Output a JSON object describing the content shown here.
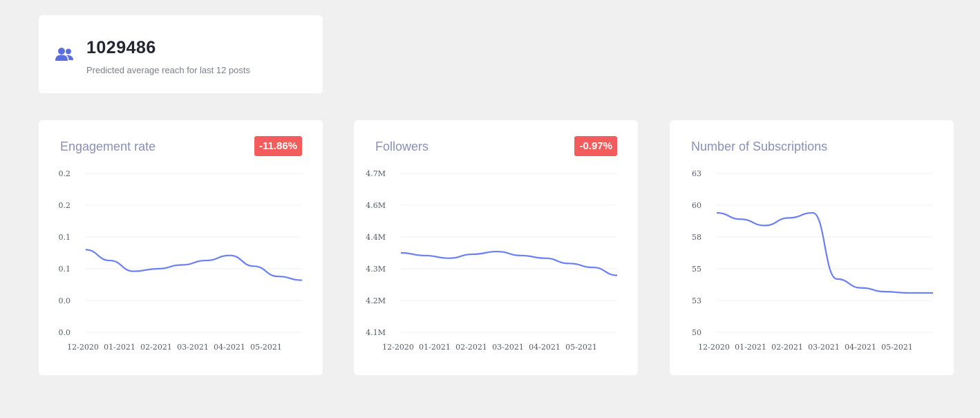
{
  "reach": {
    "value": "1029486",
    "caption": "Predicted average reach for last 12 posts",
    "icon": "users-icon",
    "icon_color": "#5a6ee0"
  },
  "colors": {
    "line": "#6b7ff5",
    "badge_negative": "#f25c5c",
    "title": "#8a8fb5"
  },
  "charts": [
    {
      "title": "Engagement rate",
      "badge": "-11.86%"
    },
    {
      "title": "Followers",
      "badge": "-0.97%"
    },
    {
      "title": "Number of Subscriptions",
      "badge": ""
    }
  ],
  "chart_data": [
    {
      "type": "line",
      "categories": [
        "12-2020",
        "01-2021",
        "02-2021",
        "03-2021",
        "04-2021",
        "05-2021"
      ],
      "y_tick_labels": [
        "0.2",
        "0.2",
        "0.1",
        "0.1",
        "0.0",
        "0.0"
      ],
      "ylim": [
        0.0,
        0.25
      ],
      "x": [
        0.0,
        1.2,
        2.4,
        3.6,
        4.8,
        6.0,
        7.2,
        8.4,
        9.6,
        10.8
      ],
      "values": [
        0.13,
        0.113,
        0.096,
        0.1,
        0.106,
        0.113,
        0.121,
        0.104,
        0.088,
        0.082
      ],
      "grid": true,
      "legend": "none"
    },
    {
      "type": "line",
      "categories": [
        "12-2020",
        "01-2021",
        "02-2021",
        "03-2021",
        "04-2021",
        "05-2021"
      ],
      "y_tick_labels": [
        "4.7M",
        "4.6M",
        "4.4M",
        "4.3M",
        "4.2M",
        "4.1M"
      ],
      "ylim": [
        4.1,
        4.7
      ],
      "x": [
        0.0,
        1.2,
        2.4,
        3.6,
        4.8,
        6.0,
        7.2,
        8.4,
        9.6,
        10.8
      ],
      "values": [
        4.4,
        4.39,
        4.38,
        4.395,
        4.405,
        4.39,
        4.38,
        4.36,
        4.345,
        4.315
      ],
      "grid": true,
      "legend": "none"
    },
    {
      "type": "line",
      "categories": [
        "12-2020",
        "01-2021",
        "02-2021",
        "03-2021",
        "04-2021",
        "05-2021"
      ],
      "y_tick_labels": [
        "63",
        "60",
        "58",
        "55",
        "53",
        "50"
      ],
      "ylim": [
        50,
        62.5
      ],
      "x": [
        0.0,
        1.2,
        2.4,
        3.6,
        4.8,
        6.0,
        7.2,
        8.4,
        9.6,
        10.8
      ],
      "values": [
        59.4,
        58.9,
        58.4,
        59.0,
        59.4,
        54.2,
        53.5,
        53.2,
        53.1,
        53.1
      ],
      "grid": true,
      "legend": "none"
    }
  ]
}
